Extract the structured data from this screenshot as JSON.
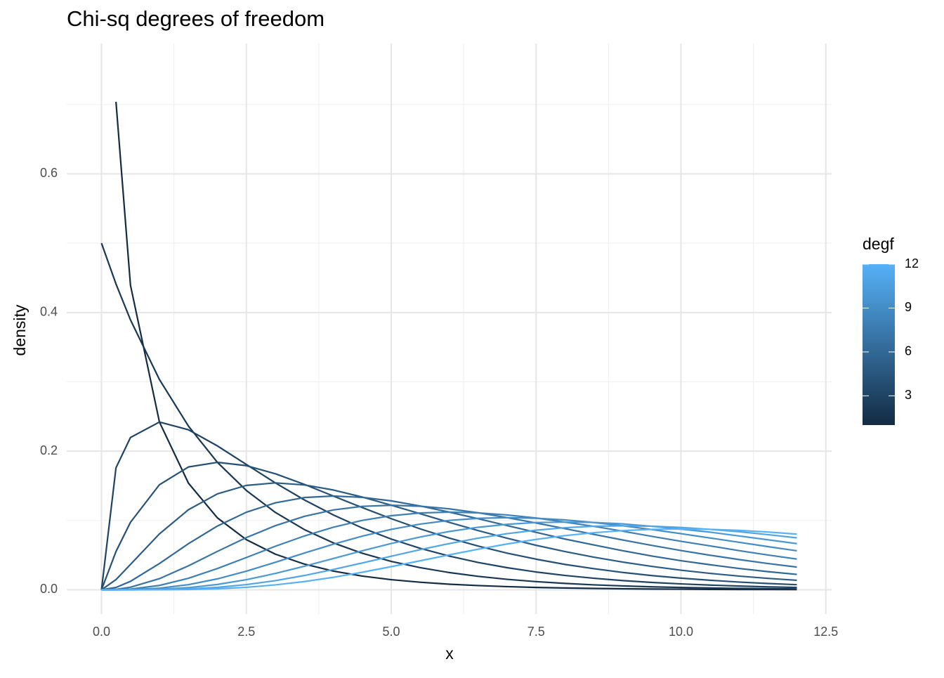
{
  "chart_data": {
    "type": "line",
    "title": "Chi-sq degrees of freedom",
    "x_label": "x",
    "y_label": "density",
    "x": [
      0,
      0.25,
      0.5,
      1,
      1.5,
      2,
      2.5,
      3,
      3.5,
      4,
      4.5,
      5,
      5.5,
      6,
      6.5,
      7,
      7.5,
      8,
      8.5,
      9,
      9.5,
      10,
      10.5,
      11,
      11.5,
      12
    ],
    "series": [
      {
        "degf": 1,
        "values": [
          null,
          0.704,
          0.4394,
          0.242,
          0.1539,
          0.1038,
          0.0723,
          0.0514,
          0.0371,
          0.027,
          0.0198,
          0.0146,
          0.0109,
          0.0081,
          0.0061,
          0.0046,
          0.0034,
          0.0026,
          0.002,
          0.0015,
          0.0011,
          0.0009,
          0.0006,
          0.0005,
          0.0004,
          0.0003
        ]
      },
      {
        "degf": 2,
        "values": [
          0.5,
          0.4412,
          0.3894,
          0.3033,
          0.2362,
          0.1839,
          0.1433,
          0.1116,
          0.0869,
          0.0677,
          0.0527,
          0.041,
          0.032,
          0.0249,
          0.0194,
          0.0151,
          0.0118,
          0.0092,
          0.0071,
          0.0056,
          0.0043,
          0.0034,
          0.0026,
          0.002,
          0.0016,
          0.0012
        ]
      },
      {
        "degf": 3,
        "values": [
          0,
          0.176,
          0.2197,
          0.242,
          0.2309,
          0.2076,
          0.1808,
          0.1542,
          0.1297,
          0.108,
          0.0892,
          0.0732,
          0.0598,
          0.0487,
          0.0394,
          0.0319,
          0.0257,
          0.0207,
          0.0166,
          0.0133,
          0.0106,
          0.0085,
          0.0068,
          0.0054,
          0.0043,
          0.0034
        ]
      },
      {
        "degf": 4,
        "values": [
          0,
          0.0552,
          0.0974,
          0.1516,
          0.1772,
          0.1839,
          0.1791,
          0.1674,
          0.1521,
          0.1353,
          0.1186,
          0.1026,
          0.0879,
          0.0747,
          0.0631,
          0.0529,
          0.0442,
          0.0366,
          0.0304,
          0.025,
          0.0205,
          0.0168,
          0.0138,
          0.0112,
          0.0091,
          0.0074
        ]
      },
      {
        "degf": 5,
        "values": [
          0,
          0.0147,
          0.0366,
          0.0807,
          0.1155,
          0.1384,
          0.1506,
          0.1542,
          0.1513,
          0.144,
          0.1338,
          0.122,
          0.1097,
          0.0973,
          0.0854,
          0.0744,
          0.0642,
          0.0551,
          0.047,
          0.0399,
          0.0337,
          0.0283,
          0.0237,
          0.0198,
          0.0165,
          0.0137
        ]
      },
      {
        "degf": 6,
        "values": [
          0,
          0.0034,
          0.0122,
          0.0379,
          0.0665,
          0.092,
          0.1119,
          0.1255,
          0.1331,
          0.1353,
          0.1334,
          0.1283,
          0.1209,
          0.1121,
          0.1025,
          0.0926,
          0.0829,
          0.0732,
          0.0646,
          0.0563,
          0.0487,
          0.042,
          0.0362,
          0.0308,
          0.0262,
          0.0222
        ]
      },
      {
        "degf": 7,
        "values": [
          0,
          0.0007,
          0.0037,
          0.0161,
          0.0346,
          0.0554,
          0.0753,
          0.0925,
          0.1059,
          0.1152,
          0.1204,
          0.122,
          0.1206,
          0.1168,
          0.1111,
          0.1041,
          0.0964,
          0.0882,
          0.0799,
          0.0718,
          0.064,
          0.0567,
          0.0499,
          0.0437,
          0.0379,
          0.0328
        ]
      },
      {
        "degf": 8,
        "values": [
          0,
          0.0001,
          0.001,
          0.0063,
          0.0166,
          0.0307,
          0.0466,
          0.0628,
          0.0776,
          0.0902,
          0.1001,
          0.1069,
          0.1108,
          0.1121,
          0.111,
          0.108,
          0.1036,
          0.0976,
          0.0915,
          0.0845,
          0.0771,
          0.07,
          0.0634,
          0.0565,
          0.0502,
          0.0444
        ]
      },
      {
        "degf": 9,
        "values": [
          0,
          0,
          0.0003,
          0.0023,
          0.0074,
          0.0158,
          0.0269,
          0.0397,
          0.053,
          0.0658,
          0.0774,
          0.0872,
          0.0948,
          0.1001,
          0.1031,
          0.1041,
          0.1032,
          0.1008,
          0.097,
          0.0923,
          0.0869,
          0.081,
          0.0748,
          0.0686,
          0.0623,
          0.0563
        ]
      },
      {
        "degf": 10,
        "values": [
          0,
          0,
          0.0001,
          0.0008,
          0.0031,
          0.0077,
          0.0146,
          0.0236,
          0.034,
          0.0451,
          0.0563,
          0.0668,
          0.0762,
          0.0841,
          0.0902,
          0.0945,
          0.0971,
          0.0976,
          0.0972,
          0.0951,
          0.0916,
          0.0875,
          0.0832,
          0.0777,
          0.0722,
          0.0666
        ]
      },
      {
        "degf": 11,
        "values": [
          0,
          0,
          0,
          0.0003,
          0.0012,
          0.0035,
          0.0075,
          0.0132,
          0.0206,
          0.0293,
          0.0387,
          0.0484,
          0.0579,
          0.0667,
          0.0745,
          0.081,
          0.086,
          0.0896,
          0.0917,
          0.0923,
          0.0917,
          0.0899,
          0.0872,
          0.0838,
          0.0796,
          0.075
        ]
      },
      {
        "degf": 12,
        "values": [
          0,
          0,
          0,
          0.0001,
          0.0005,
          0.0015,
          0.0036,
          0.0071,
          0.0119,
          0.018,
          0.0253,
          0.0334,
          0.0419,
          0.0504,
          0.0586,
          0.0661,
          0.0727,
          0.0782,
          0.0824,
          0.0854,
          0.0872,
          0.0877,
          0.0872,
          0.0857,
          0.0834,
          0.0803
        ]
      }
    ],
    "xlim": [
      -0.6,
      12.6
    ],
    "xticks": [
      {
        "value": 0,
        "label": "0.0"
      },
      2.5,
      {
        "value": 5,
        "label": "5.0"
      },
      7.5,
      {
        "value": 10,
        "label": "10.0"
      },
      12.5
    ],
    "x_minor_ticks": [
      1.25,
      3.75,
      6.25,
      8.75,
      11.25
    ],
    "ylim": [
      -0.035,
      0.788
    ],
    "yticks": [
      {
        "value": 0,
        "label": "0.0"
      },
      0.2,
      0.4,
      0.6
    ],
    "y_minor_ticks": [
      0.1,
      0.3,
      0.5,
      0.7
    ],
    "grid": true,
    "legend": {
      "title": "degf",
      "position": "right",
      "lim": [
        1,
        12
      ],
      "ticks": [
        3,
        6,
        9,
        12
      ],
      "colors": [
        "#132B43",
        "#56B1F7"
      ]
    }
  }
}
